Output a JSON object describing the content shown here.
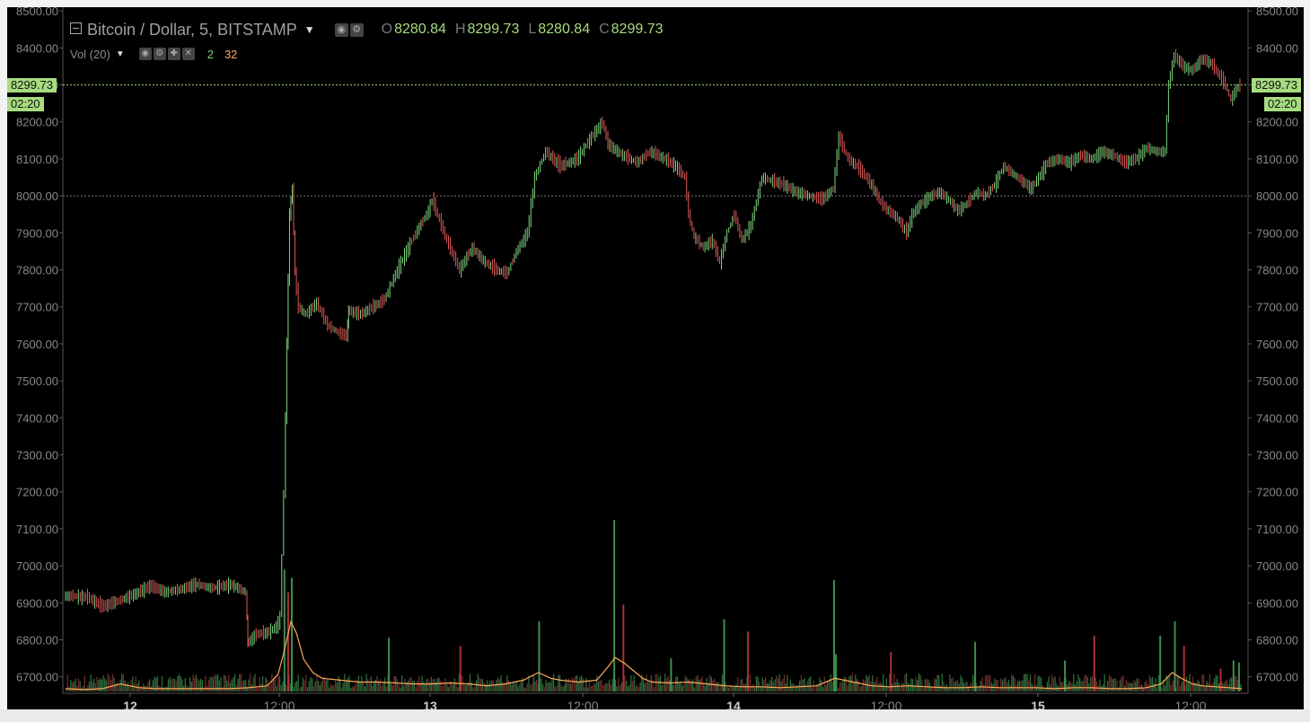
{
  "header": {
    "symbol": "Bitcoin / Dollar, 5, BITSTAMP",
    "ohlc": [
      {
        "key": "O",
        "value": "8280.84"
      },
      {
        "key": "H",
        "value": "8299.73"
      },
      {
        "key": "L",
        "value": "8280.84"
      },
      {
        "key": "C",
        "value": "8299.73"
      }
    ]
  },
  "volume_indicator": {
    "label": "Vol (20)",
    "value1": "2",
    "value2": "32"
  },
  "price_label": {
    "price": "8299.73",
    "countdown": "02:20"
  },
  "colors": {
    "background": "#000000",
    "up": "#7fd67f",
    "down": "#e05a5a",
    "ma": "#ffa857",
    "accent": "#a6dc7f"
  },
  "icons": [
    "collapse-icon",
    "caret-down-icon",
    "eye-icon",
    "gear-icon",
    "plus-icon",
    "close-icon"
  ],
  "chart_data": {
    "type": "line",
    "title": "Bitcoin / Dollar, 5, BITSTAMP",
    "y_ticks": [
      "8500.00",
      "8400.00",
      "8300.00",
      "8200.00",
      "8100.00",
      "8000.00",
      "7900.00",
      "7800.00",
      "7700.00",
      "7600.00",
      "7500.00",
      "7400.00",
      "7300.00",
      "7200.00",
      "7100.00",
      "7000.00",
      "6900.00",
      "6800.00",
      "6700.00"
    ],
    "x_ticks": [
      "12",
      "12:00",
      "13",
      "12:00",
      "14",
      "12:00",
      "15",
      "12:00"
    ],
    "ylim": [
      6675,
      8510
    ],
    "horizontal_lines": [
      8299.73,
      8000
    ],
    "grid": false,
    "price_path": [
      [
        0.0,
        6920
      ],
      [
        1.3,
        6915
      ],
      [
        2.1,
        6890
      ],
      [
        3.0,
        6905
      ],
      [
        3.9,
        6925
      ],
      [
        4.7,
        6945
      ],
      [
        5.5,
        6930
      ],
      [
        6.3,
        6935
      ],
      [
        7.2,
        6950
      ],
      [
        8.1,
        6940
      ],
      [
        9.1,
        6950
      ],
      [
        9.9,
        6930
      ],
      [
        10.0,
        6790
      ],
      [
        10.5,
        6815
      ],
      [
        11.1,
        6820
      ],
      [
        11.6,
        6835
      ],
      [
        11.8,
        6860
      ],
      [
        12.0,
        7200
      ],
      [
        12.15,
        7600
      ],
      [
        12.3,
        7950
      ],
      [
        12.45,
        8020
      ],
      [
        12.6,
        7790
      ],
      [
        12.8,
        7700
      ],
      [
        13.2,
        7680
      ],
      [
        13.8,
        7710
      ],
      [
        14.4,
        7650
      ],
      [
        15.0,
        7630
      ],
      [
        15.4,
        7620
      ],
      [
        15.5,
        7690
      ],
      [
        16.2,
        7680
      ],
      [
        16.9,
        7700
      ],
      [
        17.5,
        7720
      ],
      [
        18.2,
        7800
      ],
      [
        19.0,
        7880
      ],
      [
        19.9,
        7960
      ],
      [
        20.1,
        7990
      ],
      [
        20.9,
        7880
      ],
      [
        21.6,
        7800
      ],
      [
        22.3,
        7860
      ],
      [
        23.0,
        7820
      ],
      [
        23.6,
        7800
      ],
      [
        24.2,
        7790
      ],
      [
        24.7,
        7850
      ],
      [
        25.3,
        7900
      ],
      [
        25.7,
        8050
      ],
      [
        26.3,
        8120
      ],
      [
        27.1,
        8080
      ],
      [
        28.0,
        8100
      ],
      [
        28.8,
        8160
      ],
      [
        29.4,
        8200
      ],
      [
        29.7,
        8140
      ],
      [
        30.5,
        8110
      ],
      [
        31.3,
        8090
      ],
      [
        32.0,
        8120
      ],
      [
        32.8,
        8100
      ],
      [
        33.4,
        8080
      ],
      [
        33.9,
        8050
      ],
      [
        34.1,
        7950
      ],
      [
        34.4,
        7890
      ],
      [
        34.9,
        7860
      ],
      [
        35.4,
        7880
      ],
      [
        35.8,
        7820
      ],
      [
        36.2,
        7900
      ],
      [
        36.6,
        7950
      ],
      [
        37.0,
        7880
      ],
      [
        37.5,
        7920
      ],
      [
        38.1,
        8050
      ],
      [
        38.7,
        8040
      ],
      [
        39.3,
        8030
      ],
      [
        40.0,
        8010
      ],
      [
        40.7,
        8000
      ],
      [
        41.4,
        7990
      ],
      [
        42.0,
        8020
      ],
      [
        42.3,
        8160
      ],
      [
        42.8,
        8100
      ],
      [
        43.3,
        8080
      ],
      [
        43.8,
        8050
      ],
      [
        44.2,
        8020
      ],
      [
        44.6,
        7980
      ],
      [
        45.0,
        7960
      ],
      [
        45.5,
        7940
      ],
      [
        46.0,
        7900
      ],
      [
        46.3,
        7950
      ],
      [
        46.8,
        7980
      ],
      [
        47.3,
        8000
      ],
      [
        47.8,
        8010
      ],
      [
        48.3,
        7990
      ],
      [
        48.8,
        7960
      ],
      [
        49.3,
        7980
      ],
      [
        49.8,
        8010
      ],
      [
        50.3,
        8000
      ],
      [
        50.8,
        8030
      ],
      [
        51.3,
        8080
      ],
      [
        51.8,
        8060
      ],
      [
        52.3,
        8040
      ],
      [
        52.8,
        8020
      ],
      [
        53.2,
        8050
      ],
      [
        53.7,
        8090
      ],
      [
        54.3,
        8100
      ],
      [
        54.9,
        8090
      ],
      [
        55.5,
        8110
      ],
      [
        56.1,
        8100
      ],
      [
        56.7,
        8120
      ],
      [
        57.3,
        8110
      ],
      [
        57.9,
        8090
      ],
      [
        58.5,
        8100
      ],
      [
        59.1,
        8130
      ],
      [
        59.7,
        8120
      ],
      [
        60.1,
        8120
      ],
      [
        60.3,
        8300
      ],
      [
        60.6,
        8380
      ],
      [
        61.1,
        8350
      ],
      [
        61.6,
        8340
      ],
      [
        62.1,
        8370
      ],
      [
        62.6,
        8360
      ],
      [
        63.0,
        8330
      ],
      [
        63.4,
        8300
      ],
      [
        63.7,
        8260
      ],
      [
        64.0,
        8290
      ],
      [
        64.2,
        8299.73
      ]
    ],
    "volume_bars": [
      [
        11.9,
        118
      ],
      [
        12.1,
        96
      ],
      [
        12.3,
        110
      ],
      [
        17.6,
        52
      ],
      [
        21.5,
        44
      ],
      [
        25.8,
        68
      ],
      [
        29.9,
        166
      ],
      [
        30.4,
        84
      ],
      [
        33.0,
        32
      ],
      [
        35.9,
        70
      ],
      [
        37.2,
        58
      ],
      [
        41.9,
        108
      ],
      [
        42.0,
        36
      ],
      [
        45.0,
        38
      ],
      [
        49.6,
        48
      ],
      [
        54.5,
        30
      ],
      [
        56.1,
        54
      ],
      [
        59.7,
        54
      ],
      [
        60.5,
        68
      ],
      [
        61.0,
        44
      ],
      [
        63.7,
        30
      ],
      [
        64.0,
        28
      ],
      [
        63.0,
        22
      ]
    ],
    "volume_ma": [
      [
        0,
        3
      ],
      [
        1,
        2
      ],
      [
        2,
        3
      ],
      [
        3,
        8
      ],
      [
        4,
        4
      ],
      [
        5,
        3
      ],
      [
        6,
        3
      ],
      [
        7,
        3
      ],
      [
        8,
        3
      ],
      [
        9,
        3
      ],
      [
        10,
        4
      ],
      [
        11,
        6
      ],
      [
        11.6,
        18
      ],
      [
        11.9,
        40
      ],
      [
        12.3,
        74
      ],
      [
        12.6,
        62
      ],
      [
        13,
        34
      ],
      [
        13.5,
        20
      ],
      [
        14,
        14
      ],
      [
        15,
        12
      ],
      [
        16,
        10
      ],
      [
        17,
        10
      ],
      [
        18,
        9
      ],
      [
        19,
        8
      ],
      [
        20,
        8
      ],
      [
        21,
        9
      ],
      [
        22,
        8
      ],
      [
        23,
        6
      ],
      [
        24,
        8
      ],
      [
        25,
        12
      ],
      [
        25.8,
        20
      ],
      [
        26.5,
        14
      ],
      [
        27,
        12
      ],
      [
        28,
        10
      ],
      [
        29,
        12
      ],
      [
        29.6,
        26
      ],
      [
        30.0,
        36
      ],
      [
        30.5,
        30
      ],
      [
        31,
        22
      ],
      [
        31.5,
        14
      ],
      [
        32,
        10
      ],
      [
        33,
        9
      ],
      [
        34,
        10
      ],
      [
        35,
        8
      ],
      [
        36,
        6
      ],
      [
        37,
        5
      ],
      [
        38,
        5
      ],
      [
        39,
        4
      ],
      [
        40,
        5
      ],
      [
        41,
        6
      ],
      [
        42,
        14
      ],
      [
        43,
        10
      ],
      [
        44,
        6
      ],
      [
        45,
        5
      ],
      [
        46,
        6
      ],
      [
        47,
        5
      ],
      [
        48,
        4
      ],
      [
        49,
        4
      ],
      [
        50,
        5
      ],
      [
        51,
        4
      ],
      [
        52,
        4
      ],
      [
        53,
        4
      ],
      [
        54,
        3
      ],
      [
        55,
        4
      ],
      [
        56,
        4
      ],
      [
        57,
        3
      ],
      [
        58,
        3
      ],
      [
        59,
        4
      ],
      [
        59.8,
        8
      ],
      [
        60.4,
        20
      ],
      [
        60.9,
        14
      ],
      [
        61.5,
        8
      ],
      [
        62,
        6
      ],
      [
        62.8,
        5
      ],
      [
        63.5,
        4
      ],
      [
        64.2,
        3
      ]
    ]
  }
}
